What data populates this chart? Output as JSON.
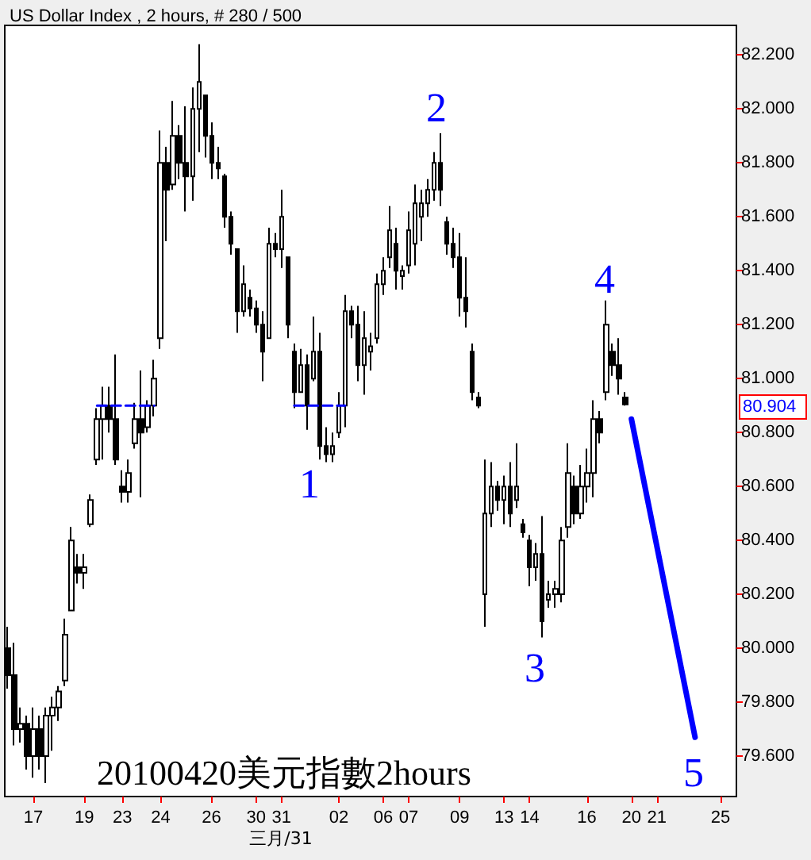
{
  "chart_data": {
    "type": "candlestick",
    "title": "US Dollar Index , 2 hours, # 280 / 500",
    "categories": [
      null,
      null,
      null,
      null,
      "17",
      null,
      null,
      null,
      null,
      null,
      null,
      null,
      "19",
      null,
      null,
      null,
      null,
      null,
      "23",
      null,
      null,
      null,
      null,
      null,
      "24",
      null,
      null,
      null,
      null,
      null,
      null,
      null,
      "26",
      null,
      null,
      null,
      null,
      null,
      null,
      "30",
      null,
      null,
      null,
      "31",
      null,
      null,
      null,
      null,
      null,
      null,
      null,
      null,
      "02",
      null,
      null,
      null,
      null,
      null,
      null,
      "06",
      null,
      null,
      null,
      "07",
      null,
      null,
      null,
      null,
      null,
      null,
      null,
      "09",
      null,
      null,
      null,
      null,
      null,
      null,
      "13",
      null,
      null,
      null,
      "14",
      null,
      null,
      null,
      null,
      null,
      null,
      null,
      null,
      "16",
      null,
      null,
      null,
      null,
      null,
      null,
      "20",
      null,
      null,
      null,
      "21",
      null,
      null,
      null,
      null,
      null,
      null,
      null,
      null,
      null,
      "25",
      null,
      null
    ],
    "color": "#000000",
    "ohlc": [
      [
        80.0,
        80.08,
        79.85,
        79.9
      ],
      [
        79.9,
        80.02,
        79.64,
        79.7
      ],
      [
        79.7,
        79.78,
        79.65,
        79.72
      ],
      [
        79.72,
        79.75,
        79.55,
        79.6
      ],
      [
        79.6,
        79.78,
        79.52,
        79.7
      ],
      [
        79.7,
        79.75,
        79.55,
        79.6
      ],
      [
        79.6,
        79.78,
        79.5,
        79.75
      ],
      [
        79.75,
        79.82,
        79.62,
        79.78
      ],
      [
        79.78,
        79.86,
        79.73,
        79.84
      ],
      [
        79.88,
        80.11,
        79.86,
        80.05
      ],
      [
        80.14,
        80.45,
        80.14,
        80.4
      ],
      [
        80.3,
        80.35,
        80.24,
        80.28
      ],
      [
        80.28,
        80.35,
        80.22,
        80.3
      ],
      [
        80.46,
        80.57,
        80.45,
        80.55
      ],
      [
        80.7,
        80.89,
        80.68,
        80.85
      ],
      [
        80.85,
        80.97,
        80.7,
        80.9
      ],
      [
        80.9,
        80.97,
        80.8,
        80.85
      ],
      [
        80.85,
        81.09,
        80.68,
        80.7
      ],
      [
        80.6,
        80.66,
        80.54,
        80.58
      ],
      [
        80.58,
        80.7,
        80.54,
        80.65
      ],
      [
        80.76,
        80.91,
        80.74,
        80.85
      ],
      [
        80.85,
        81.03,
        80.56,
        80.8
      ],
      [
        80.82,
        80.92,
        80.8,
        80.9
      ],
      [
        80.9,
        81.07,
        80.86,
        81.0
      ],
      [
        81.15,
        81.92,
        81.11,
        81.8
      ],
      [
        81.8,
        81.86,
        81.51,
        81.7
      ],
      [
        81.72,
        82.03,
        81.7,
        81.9
      ],
      [
        81.9,
        81.94,
        81.74,
        81.8
      ],
      [
        81.8,
        82.01,
        81.62,
        81.75
      ],
      [
        81.75,
        82.08,
        81.66,
        82.0
      ],
      [
        82.0,
        82.24,
        81.84,
        82.1
      ],
      [
        82.05,
        82.05,
        81.82,
        81.9
      ],
      [
        81.9,
        81.95,
        81.74,
        81.8
      ],
      [
        81.8,
        81.86,
        81.74,
        81.78
      ],
      [
        81.75,
        81.76,
        81.56,
        81.6
      ],
      [
        81.6,
        81.62,
        81.46,
        81.5
      ],
      [
        81.48,
        81.48,
        81.17,
        81.25
      ],
      [
        81.25,
        81.42,
        81.23,
        81.35
      ],
      [
        81.3,
        81.33,
        81.23,
        81.26
      ],
      [
        81.26,
        81.29,
        81.17,
        81.2
      ],
      [
        81.2,
        81.25,
        80.99,
        81.1
      ],
      [
        81.15,
        81.56,
        81.15,
        81.5
      ],
      [
        81.5,
        81.54,
        81.45,
        81.48
      ],
      [
        81.48,
        81.7,
        81.41,
        81.6
      ],
      [
        81.45,
        81.45,
        81.15,
        81.2
      ],
      [
        81.1,
        81.13,
        80.89,
        80.95
      ],
      [
        80.95,
        81.11,
        80.95,
        81.05
      ],
      [
        81.05,
        81.09,
        80.81,
        80.9
      ],
      [
        81.0,
        81.23,
        80.99,
        81.1
      ],
      [
        81.1,
        81.17,
        80.7,
        80.75
      ],
      [
        80.75,
        80.82,
        80.69,
        80.72
      ],
      [
        80.72,
        80.8,
        80.69,
        80.75
      ],
      [
        80.8,
        80.95,
        80.78,
        80.9
      ],
      [
        80.9,
        81.31,
        80.82,
        81.25
      ],
      [
        81.25,
        81.27,
        81.15,
        81.2
      ],
      [
        81.2,
        81.27,
        80.99,
        81.05
      ],
      [
        81.05,
        81.25,
        80.94,
        81.15
      ],
      [
        81.1,
        81.17,
        81.03,
        81.12
      ],
      [
        81.15,
        81.39,
        81.13,
        81.35
      ],
      [
        81.35,
        81.45,
        81.31,
        81.4
      ],
      [
        81.45,
        81.64,
        81.41,
        81.55
      ],
      [
        81.5,
        81.56,
        81.33,
        81.4
      ],
      [
        81.38,
        81.42,
        81.33,
        81.4
      ],
      [
        81.42,
        81.62,
        81.39,
        81.55
      ],
      [
        81.5,
        81.72,
        81.42,
        81.65
      ],
      [
        81.6,
        81.7,
        81.51,
        81.65
      ],
      [
        81.65,
        81.74,
        81.6,
        81.7
      ],
      [
        81.7,
        81.84,
        81.66,
        81.8
      ],
      [
        81.8,
        81.91,
        81.64,
        81.7
      ],
      [
        81.58,
        81.6,
        81.46,
        81.5
      ],
      [
        81.5,
        81.56,
        81.41,
        81.45
      ],
      [
        81.45,
        81.54,
        81.23,
        81.3
      ],
      [
        81.3,
        81.45,
        81.19,
        81.25
      ],
      [
        81.1,
        81.13,
        80.92,
        80.95
      ],
      [
        80.93,
        80.95,
        80.89,
        80.9
      ],
      [
        80.2,
        80.7,
        80.08,
        80.5
      ],
      [
        80.5,
        80.69,
        80.45,
        80.6
      ],
      [
        80.6,
        80.62,
        80.51,
        80.55
      ],
      [
        80.55,
        80.64,
        80.46,
        80.6
      ],
      [
        80.6,
        80.69,
        80.45,
        80.5
      ],
      [
        80.55,
        80.76,
        80.52,
        80.6
      ],
      [
        80.46,
        80.48,
        80.41,
        80.43
      ],
      [
        80.4,
        80.42,
        80.23,
        80.3
      ],
      [
        80.3,
        80.39,
        80.25,
        80.35
      ],
      [
        80.35,
        80.49,
        80.04,
        80.1
      ],
      [
        80.18,
        80.25,
        80.15,
        80.2
      ],
      [
        80.2,
        80.25,
        80.15,
        80.22
      ],
      [
        80.2,
        80.45,
        80.17,
        80.4
      ],
      [
        80.45,
        80.76,
        80.41,
        80.65
      ],
      [
        80.6,
        80.64,
        80.46,
        80.5
      ],
      [
        80.5,
        80.68,
        80.48,
        80.6
      ],
      [
        80.6,
        80.74,
        80.54,
        80.65
      ],
      [
        80.65,
        80.92,
        80.56,
        80.85
      ],
      [
        80.85,
        80.88,
        80.76,
        80.8
      ],
      [
        80.95,
        81.29,
        80.92,
        81.2
      ],
      [
        81.1,
        81.13,
        81.01,
        81.05
      ],
      [
        81.05,
        81.15,
        80.94,
        81.0
      ],
      [
        80.93,
        80.95,
        80.9,
        80.904
      ],
      null,
      null,
      null,
      null,
      null,
      null,
      null,
      null,
      null,
      null,
      null,
      null,
      null,
      null,
      null,
      null,
      null
    ],
    "series": [
      {
        "type": "line",
        "line_style": "dashed",
        "color": "#0000ff",
        "values": [
          null,
          null,
          null,
          null,
          null,
          null,
          null,
          null,
          null,
          null,
          null,
          null,
          null,
          null,
          80.9,
          80.9,
          80.9,
          80.9,
          80.9,
          80.9,
          80.9,
          80.9,
          80.9,
          80.9,
          null,
          null,
          null,
          null,
          null,
          null,
          null,
          null,
          null,
          null,
          null,
          null,
          null,
          null,
          null,
          null,
          null,
          null,
          null,
          null,
          null,
          80.9,
          80.9,
          80.9,
          80.9,
          80.9,
          80.9,
          80.9,
          80.9,
          80.9,
          null,
          null,
          null,
          null,
          null,
          null,
          null,
          null,
          null,
          null,
          null,
          null,
          null,
          null,
          null,
          null,
          null,
          null,
          null,
          null,
          null,
          null,
          null,
          null,
          null,
          null,
          null,
          null,
          null,
          null,
          null,
          null,
          null,
          null,
          null,
          null,
          null,
          null,
          null,
          null,
          null,
          null,
          null,
          null,
          null,
          null,
          null,
          null,
          null,
          null,
          null,
          null,
          null,
          null,
          null,
          null,
          null,
          null,
          null,
          null,
          null
        ]
      },
      {
        "type": "line",
        "line_style": "solid",
        "color": "#0000ff",
        "values": [
          null,
          null,
          null,
          null,
          null,
          null,
          null,
          null,
          null,
          null,
          null,
          null,
          null,
          null,
          null,
          null,
          null,
          null,
          null,
          null,
          null,
          null,
          null,
          null,
          null,
          null,
          null,
          null,
          null,
          null,
          null,
          null,
          null,
          null,
          null,
          null,
          null,
          null,
          null,
          null,
          null,
          null,
          null,
          null,
          null,
          null,
          null,
          null,
          null,
          null,
          null,
          null,
          null,
          null,
          null,
          null,
          null,
          null,
          null,
          null,
          null,
          null,
          null,
          null,
          null,
          null,
          null,
          null,
          null,
          null,
          null,
          null,
          null,
          null,
          null,
          null,
          null,
          null,
          null,
          null,
          null,
          null,
          null,
          null,
          null,
          null,
          null,
          null,
          null,
          null,
          null,
          null,
          null,
          null,
          null,
          null,
          null,
          null,
          80.85,
          null,
          null,
          null,
          null,
          null,
          null,
          null,
          null,
          null,
          79.67,
          null,
          null,
          null,
          null,
          null,
          null
        ]
      }
    ],
    "ylim": [
      79.45,
      82.31
    ],
    "yticks": [
      {
        "value": 79.6,
        "label": "79.600"
      },
      {
        "value": 79.8,
        "label": "79.800"
      },
      {
        "value": 80.0,
        "label": "80.000"
      },
      {
        "value": 80.2,
        "label": "80.200"
      },
      {
        "value": 80.4,
        "label": "80.400"
      },
      {
        "value": 80.6,
        "label": "80.600"
      },
      {
        "value": 80.8,
        "label": "80.800"
      },
      {
        "value": 81.0,
        "label": "81.000"
      },
      {
        "value": 81.2,
        "label": "81.200"
      },
      {
        "value": 81.4,
        "label": "81.400"
      },
      {
        "value": 81.6,
        "label": "81.600"
      },
      {
        "value": 81.8,
        "label": "81.800"
      },
      {
        "value": 82.0,
        "label": "82.000"
      },
      {
        "value": 82.2,
        "label": "82.200"
      }
    ],
    "grid": false,
    "annotations": [
      "20100420美元指數2hours",
      "80.904",
      "三月/31",
      "1",
      "2",
      "3",
      "4",
      "5"
    ]
  }
}
